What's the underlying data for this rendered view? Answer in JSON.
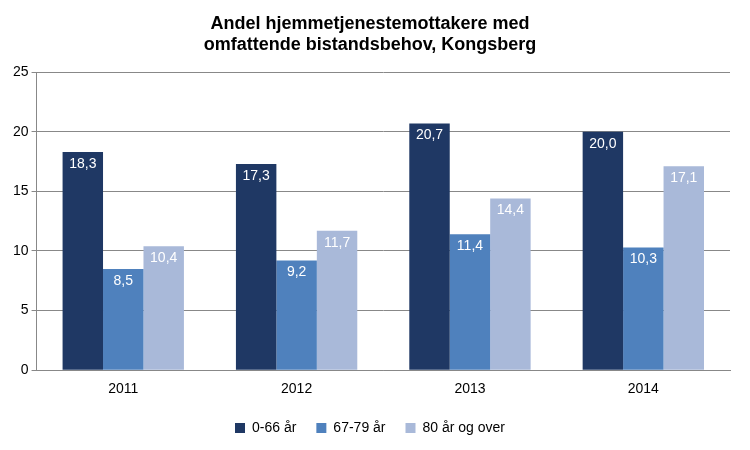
{
  "chart_data": {
    "type": "bar",
    "title": "Andel hjemmetjenestemottakere med omfattende bistandsbehov, Kongsberg",
    "categories": [
      "2011",
      "2012",
      "2013",
      "2014"
    ],
    "series": [
      {
        "name": "0-66 år",
        "color": "#1f3864",
        "values": [
          18.3,
          17.3,
          20.7,
          20.0
        ],
        "value_labels": [
          "18,3",
          "17,3",
          "20,7",
          "20,0"
        ]
      },
      {
        "name": "67-79 år",
        "color": "#4f81bd",
        "values": [
          8.5,
          9.2,
          11.4,
          10.3
        ],
        "value_labels": [
          "8,5",
          "9,2",
          "11,4",
          "10,3"
        ]
      },
      {
        "name": "80 år og over",
        "color": "#a9b9d9",
        "values": [
          10.4,
          11.7,
          14.4,
          17.1
        ],
        "value_labels": [
          "10,4",
          "11,7",
          "14,4",
          "17,1"
        ]
      }
    ],
    "ylim": [
      0,
      25
    ],
    "yticks": [
      0,
      5,
      10,
      15,
      20,
      25
    ],
    "grid": true,
    "legend": "bottom",
    "data_labels": true
  }
}
